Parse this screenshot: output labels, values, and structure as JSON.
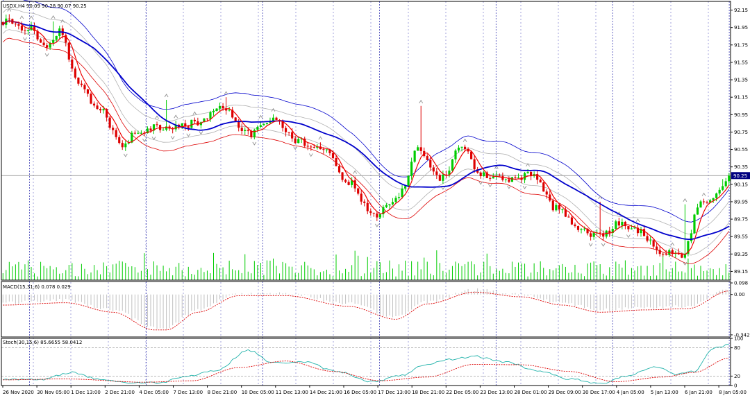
{
  "colors": {
    "background": "#ffffff",
    "frame": "#000000",
    "bull": "#00cc00",
    "bear": "#dd0000",
    "ma_blue": "#0000cc",
    "ma_red": "#ee0000",
    "band_blue": "#0000cc",
    "band_red": "#dd0000",
    "envelope_gray": "#b0b0b0",
    "volume": "#00cc00",
    "period_sep": "#2222aa",
    "price_box_bg": "#000080",
    "price_box_fg": "#ffffff",
    "macd_hist": "#c0c0c0",
    "macd_signal": "#dd0000",
    "stoch_main": "#20b2aa",
    "stoch_signal": "#dd0000",
    "stoch_level": "#a0a0a0"
  },
  "chart_data": [
    {
      "type": "candlestick",
      "panel": "main",
      "legend": "USDX,H4  90.09 90.28 90.07 90.25",
      "current_price_label": "90.25",
      "current_price": 90.25,
      "ylim": [
        89.05,
        92.25
      ],
      "y_ticks": [
        "92.15",
        "91.95",
        "91.75",
        "91.55",
        "91.35",
        "91.15",
        "90.95",
        "90.75",
        "90.55",
        "90.35",
        "90.15",
        "89.95",
        "89.75",
        "89.55",
        "89.35",
        "89.15"
      ],
      "y_tick_values": [
        92.15,
        91.95,
        91.75,
        91.55,
        91.35,
        91.15,
        90.95,
        90.75,
        90.55,
        90.35,
        90.15,
        89.95,
        89.75,
        89.55,
        89.35,
        89.15
      ],
      "x_labels": [
        "26 Nov 2020",
        "30 Nov 05:00",
        "1 Dec 13:00",
        "2 Dec 21:00",
        "4 Dec 05:00",
        "7 Dec 13:00",
        "8 Dec 21:00",
        "10 Dec 05:00",
        "11 Dec 13:00",
        "14 Dec 21:00",
        "16 Dec 05:00",
        "17 Dec 13:00",
        "18 Dec 21:00",
        "22 Dec 05:00",
        "23 Dec 13:00",
        "28 Dec 01:00",
        "29 Dec 09:00",
        "30 Dec 17:00",
        "4 Jan 05:00",
        "5 Jan 13:00",
        "6 Jan 21:00",
        "8 Jan 05:00"
      ],
      "period_separator_bar_index": [
        8,
        43,
        78,
        113,
        148,
        183,
        218
      ],
      "bar_count": 232,
      "anchors": [
        {
          "bar": 0,
          "price": 92.02
        },
        {
          "bar": 8,
          "price": 91.95
        },
        {
          "bar": 14,
          "price": 91.72
        },
        {
          "bar": 18,
          "price": 91.92
        },
        {
          "bar": 24,
          "price": 91.32
        },
        {
          "bar": 30,
          "price": 91.05
        },
        {
          "bar": 38,
          "price": 90.62
        },
        {
          "bar": 44,
          "price": 90.78
        },
        {
          "bar": 52,
          "price": 90.82
        },
        {
          "bar": 62,
          "price": 90.85
        },
        {
          "bar": 70,
          "price": 91.05
        },
        {
          "bar": 78,
          "price": 90.72
        },
        {
          "bar": 86,
          "price": 90.92
        },
        {
          "bar": 94,
          "price": 90.65
        },
        {
          "bar": 102,
          "price": 90.55
        },
        {
          "bar": 110,
          "price": 90.18
        },
        {
          "bar": 118,
          "price": 89.78
        },
        {
          "bar": 126,
          "price": 90.02
        },
        {
          "bar": 132,
          "price": 90.55
        },
        {
          "bar": 140,
          "price": 90.22
        },
        {
          "bar": 146,
          "price": 90.62
        },
        {
          "bar": 152,
          "price": 90.25
        },
        {
          "bar": 160,
          "price": 90.22
        },
        {
          "bar": 168,
          "price": 90.25
        },
        {
          "bar": 176,
          "price": 89.88
        },
        {
          "bar": 184,
          "price": 89.62
        },
        {
          "bar": 190,
          "price": 89.55
        },
        {
          "bar": 196,
          "price": 89.72
        },
        {
          "bar": 202,
          "price": 89.62
        },
        {
          "bar": 210,
          "price": 89.38
        },
        {
          "bar": 216,
          "price": 89.32
        },
        {
          "bar": 222,
          "price": 89.92
        },
        {
          "bar": 228,
          "price": 90.05
        },
        {
          "bar": 231,
          "price": 90.25
        }
      ],
      "spikes": [
        {
          "bar": 16,
          "high": 92.02
        },
        {
          "bar": 52,
          "high": 91.12
        },
        {
          "bar": 71,
          "high": 91.15
        },
        {
          "bar": 133,
          "high": 91.05
        },
        {
          "bar": 190,
          "high": 89.95
        },
        {
          "bar": 217,
          "high": 89.92
        },
        {
          "bar": 229,
          "high": 90.21
        }
      ],
      "max_volume": 100
    },
    {
      "type": "indicator",
      "panel": "macd",
      "legend": "MACD(15,31,6) 0.078 0.029",
      "ylim": [
        -0.36,
        0.11
      ],
      "y_ticks": [
        "0.098",
        "0.00",
        "-0.342"
      ],
      "y_tick_values": [
        0.098,
        0.0,
        -0.342
      ],
      "signal_anchors": [
        {
          "bar": 0,
          "value": -0.09
        },
        {
          "bar": 20,
          "value": -0.07
        },
        {
          "bar": 35,
          "value": -0.15
        },
        {
          "bar": 48,
          "value": -0.3
        },
        {
          "bar": 52,
          "value": -0.3
        },
        {
          "bar": 62,
          "value": -0.15
        },
        {
          "bar": 75,
          "value": -0.01
        },
        {
          "bar": 90,
          "value": -0.01
        },
        {
          "bar": 110,
          "value": -0.1
        },
        {
          "bar": 125,
          "value": -0.21
        },
        {
          "bar": 135,
          "value": -0.08
        },
        {
          "bar": 150,
          "value": 0.02
        },
        {
          "bar": 165,
          "value": -0.02
        },
        {
          "bar": 178,
          "value": -0.09
        },
        {
          "bar": 190,
          "value": -0.15
        },
        {
          "bar": 205,
          "value": -0.13
        },
        {
          "bar": 218,
          "value": -0.12
        },
        {
          "bar": 231,
          "value": 0.03
        }
      ]
    },
    {
      "type": "indicator",
      "panel": "stochastic",
      "legend": "Stoch(30,15,6) 85.6655 58.0412",
      "ylim": [
        0,
        100
      ],
      "y_ticks": [
        "100",
        "80",
        "20",
        "0"
      ],
      "y_tick_values": [
        100,
        80,
        20,
        0
      ],
      "levels": [
        80,
        20
      ],
      "main_anchors": [
        {
          "bar": 0,
          "value": 14
        },
        {
          "bar": 12,
          "value": 12
        },
        {
          "bar": 22,
          "value": 28
        },
        {
          "bar": 30,
          "value": 14
        },
        {
          "bar": 40,
          "value": 6
        },
        {
          "bar": 50,
          "value": 6
        },
        {
          "bar": 58,
          "value": 20
        },
        {
          "bar": 68,
          "value": 32
        },
        {
          "bar": 78,
          "value": 75
        },
        {
          "bar": 86,
          "value": 48
        },
        {
          "bar": 96,
          "value": 50
        },
        {
          "bar": 106,
          "value": 30
        },
        {
          "bar": 118,
          "value": 8
        },
        {
          "bar": 126,
          "value": 20
        },
        {
          "bar": 134,
          "value": 42
        },
        {
          "bar": 142,
          "value": 55
        },
        {
          "bar": 150,
          "value": 62
        },
        {
          "bar": 160,
          "value": 50
        },
        {
          "bar": 170,
          "value": 32
        },
        {
          "bar": 180,
          "value": 14
        },
        {
          "bar": 190,
          "value": 4
        },
        {
          "bar": 198,
          "value": 20
        },
        {
          "bar": 208,
          "value": 40
        },
        {
          "bar": 214,
          "value": 24
        },
        {
          "bar": 220,
          "value": 30
        },
        {
          "bar": 226,
          "value": 80
        },
        {
          "bar": 231,
          "value": 86
        }
      ],
      "signal_anchors": [
        {
          "bar": 0,
          "value": 12
        },
        {
          "bar": 20,
          "value": 14
        },
        {
          "bar": 45,
          "value": 7
        },
        {
          "bar": 60,
          "value": 10
        },
        {
          "bar": 75,
          "value": 38
        },
        {
          "bar": 90,
          "value": 52
        },
        {
          "bar": 105,
          "value": 30
        },
        {
          "bar": 120,
          "value": 10
        },
        {
          "bar": 135,
          "value": 18
        },
        {
          "bar": 150,
          "value": 45
        },
        {
          "bar": 165,
          "value": 44
        },
        {
          "bar": 180,
          "value": 30
        },
        {
          "bar": 195,
          "value": 8
        },
        {
          "bar": 210,
          "value": 18
        },
        {
          "bar": 220,
          "value": 28
        },
        {
          "bar": 231,
          "value": 58
        }
      ]
    }
  ]
}
